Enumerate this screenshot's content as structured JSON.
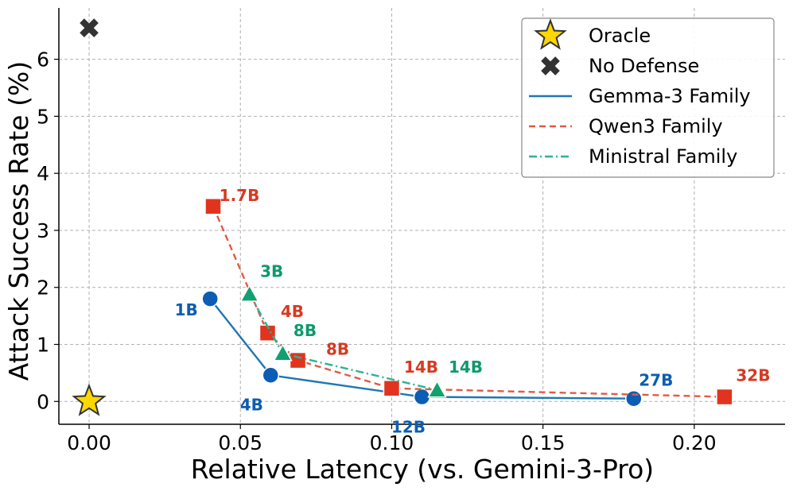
{
  "chart_data": {
    "type": "scatter",
    "title": "",
    "xlabel": "Relative Latency (vs. Gemini-3-Pro)",
    "ylabel": "Attack Success Rate (%)",
    "xlim": [
      -0.01,
      0.23
    ],
    "ylim": [
      -0.4,
      6.9
    ],
    "xticks": [
      0.0,
      0.05,
      0.1,
      0.15,
      0.2
    ],
    "xtick_labels": [
      "0.00",
      "0.05",
      "0.10",
      "0.15",
      "0.20"
    ],
    "yticks": [
      0,
      1,
      2,
      3,
      4,
      5,
      6
    ],
    "ytick_labels": [
      "0",
      "1",
      "2",
      "3",
      "4",
      "5",
      "6"
    ],
    "grid": true,
    "legend_position": "top-right",
    "markers": [
      {
        "name": "Oracle",
        "shape": "star",
        "color": "#FFD700",
        "x": 0.0,
        "y": 0.0
      },
      {
        "name": "No Defense",
        "shape": "x",
        "color": "#333333",
        "x": 0.0,
        "y": 6.55
      }
    ],
    "series": [
      {
        "name": "Gemma-3 Family",
        "color": "#1f77b4",
        "label_color": "#0c5db3",
        "line": "solid",
        "marker": "circle",
        "marker_color": "#0c5db3",
        "points": [
          {
            "label": "1B",
            "x": 0.04,
            "y": 1.8
          },
          {
            "label": "4B",
            "x": 0.06,
            "y": 0.46
          },
          {
            "label": "12B",
            "x": 0.11,
            "y": 0.08
          },
          {
            "label": "27B",
            "x": 0.18,
            "y": 0.05
          }
        ]
      },
      {
        "name": "Qwen3 Family",
        "color": "#e05a47",
        "label_color": "#d63a22",
        "line": "dashed",
        "marker": "square",
        "marker_color": "#e0341f",
        "points": [
          {
            "label": "1.7B",
            "x": 0.041,
            "y": 3.42
          },
          {
            "label": "4B",
            "x": 0.059,
            "y": 1.2
          },
          {
            "label": "8B",
            "x": 0.069,
            "y": 0.72
          },
          {
            "label": "14B",
            "x": 0.1,
            "y": 0.23
          },
          {
            "label": "32B",
            "x": 0.21,
            "y": 0.08
          }
        ]
      },
      {
        "name": "Ministral Family",
        "color": "#2db391",
        "label_color": "#0e9a6c",
        "line": "dashdot",
        "marker": "triangle",
        "marker_color": "#12a06e",
        "points": [
          {
            "label": "3B",
            "x": 0.053,
            "y": 1.88
          },
          {
            "label": "8B",
            "x": 0.064,
            "y": 0.84
          },
          {
            "label": "14B",
            "x": 0.115,
            "y": 0.2
          }
        ]
      }
    ],
    "legend": [
      {
        "label": "Oracle",
        "kind": "star"
      },
      {
        "label": "No Defense",
        "kind": "x"
      },
      {
        "label": "Gemma-3 Family",
        "kind": "solid"
      },
      {
        "label": "Qwen3 Family",
        "kind": "dashed"
      },
      {
        "label": "Ministral Family",
        "kind": "dashdot"
      }
    ]
  }
}
